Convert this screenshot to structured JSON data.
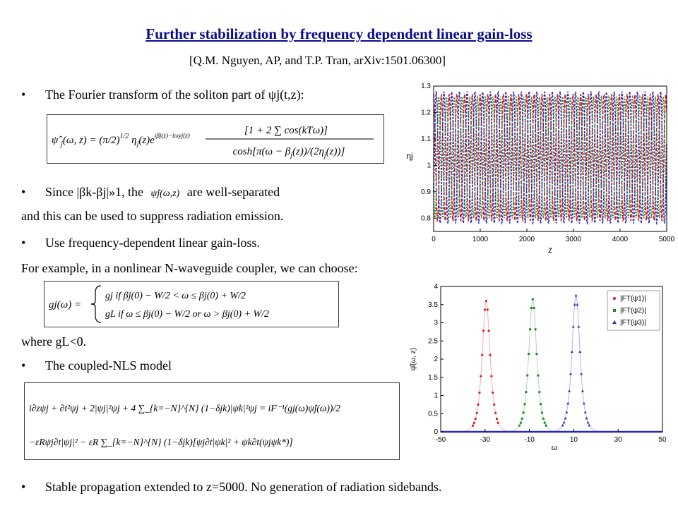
{
  "slide": {
    "title": "Further stabilization by frequency dependent linear gain-loss",
    "reference": "[Q.M. Nguyen, AP, and T.P. Tran, arXiv:1501.06300]",
    "bullet1": "The Fourier transform of the soliton part of ψj(t,z):",
    "bullet2_pre": "Since |βk-βj|»1, the",
    "bullet2_symbol": "ψ̂j(ω,z)",
    "bullet2_post": "are well-separated",
    "line2": "and this can be used to suppress radiation emission.",
    "bullet3": "Use frequency-dependent linear gain-loss.",
    "line4": "For example, in a nonlinear N-waveguide coupler, we can choose:",
    "where": "where gL<0.",
    "bullet4": "The coupled-NLS model",
    "bullet5": "Stable propagation extended to z=5000. No generation of radiation sidebands."
  },
  "equations": {
    "fourier": "ψ̂j(ω,z) = (π/2)^1/2 ηj(z) e^{iβj(z)−iωyj(z)} [1+2∑_{k=1}^{J} cos(kTω)] / cosh[π(ω−βj(z))/(2ηj(z))]",
    "gain_lhs": "gj(ω) =",
    "gain_case1": "gj   if βj(0) − W/2 < ω ≤ βj(0) + W/2",
    "gain_case2": "gL   if ω ≤ βj(0) − W/2  or  ω > βj(0) + W/2",
    "nls_line1": "i∂zψj + ∂t²ψj + 2|ψj|²ψj + 4 ∑_{k=−N}^{N} (1−δjk)|ψk|²ψj = iF⁻¹(gj(ω)ψ̂j(ω))/2",
    "nls_line2": "−εRψj∂t|ψj|² − εR ∑_{k=−N}^{N} (1−δjk)[ψj∂t|ψk|² + ψk∂t(ψjψk*)]"
  },
  "chart_data": [
    {
      "type": "line",
      "xlabel": "z",
      "ylabel": "ηj",
      "xlim": [
        0,
        5000
      ],
      "ylim": [
        0.75,
        1.3
      ],
      "xticks": [
        "0",
        "1000",
        "2000",
        "3000",
        "4000",
        "5000"
      ],
      "yticks": [
        "0.8",
        "0.9",
        "1",
        "1.1",
        "1.2",
        "1.3"
      ],
      "grid": false,
      "series": [
        {
          "color": "#d42020",
          "min": 0.79,
          "max": 1.27,
          "period": 166,
          "phase": 0
        },
        {
          "color": "#1f8a1f",
          "min": 0.8,
          "max": 1.26,
          "period": 166,
          "phase": 55
        },
        {
          "color": "#2a2ab8",
          "min": 0.78,
          "max": 1.28,
          "period": 166,
          "phase": 110
        }
      ]
    },
    {
      "type": "scatter",
      "xlabel": "ω",
      "ylabel": "ψ̂(ω, z)",
      "xlim": [
        -50,
        50
      ],
      "ylim": [
        0,
        4
      ],
      "xticks": [
        "-50",
        "-30",
        "-10",
        "10",
        "30",
        "50"
      ],
      "yticks": [
        "0",
        "0.5",
        "1",
        "1.5",
        "2",
        "2.5",
        "3",
        "3.5",
        "4"
      ],
      "legend_position": "top-right",
      "series": [
        {
          "name": "|FT(ψ1)|",
          "color": "#d42020",
          "marker": "circle",
          "center": -29.5,
          "peak": 3.6,
          "width": 1.6
        },
        {
          "name": "|FT(ψ2)|",
          "color": "#1f8a1f",
          "marker": "square",
          "center": -8.5,
          "peak": 3.65,
          "width": 1.6
        },
        {
          "name": "|FT(ψ3)|",
          "color": "#2a2ab8",
          "marker": "triangle",
          "center": 11,
          "peak": 3.75,
          "width": 1.6
        }
      ]
    }
  ]
}
